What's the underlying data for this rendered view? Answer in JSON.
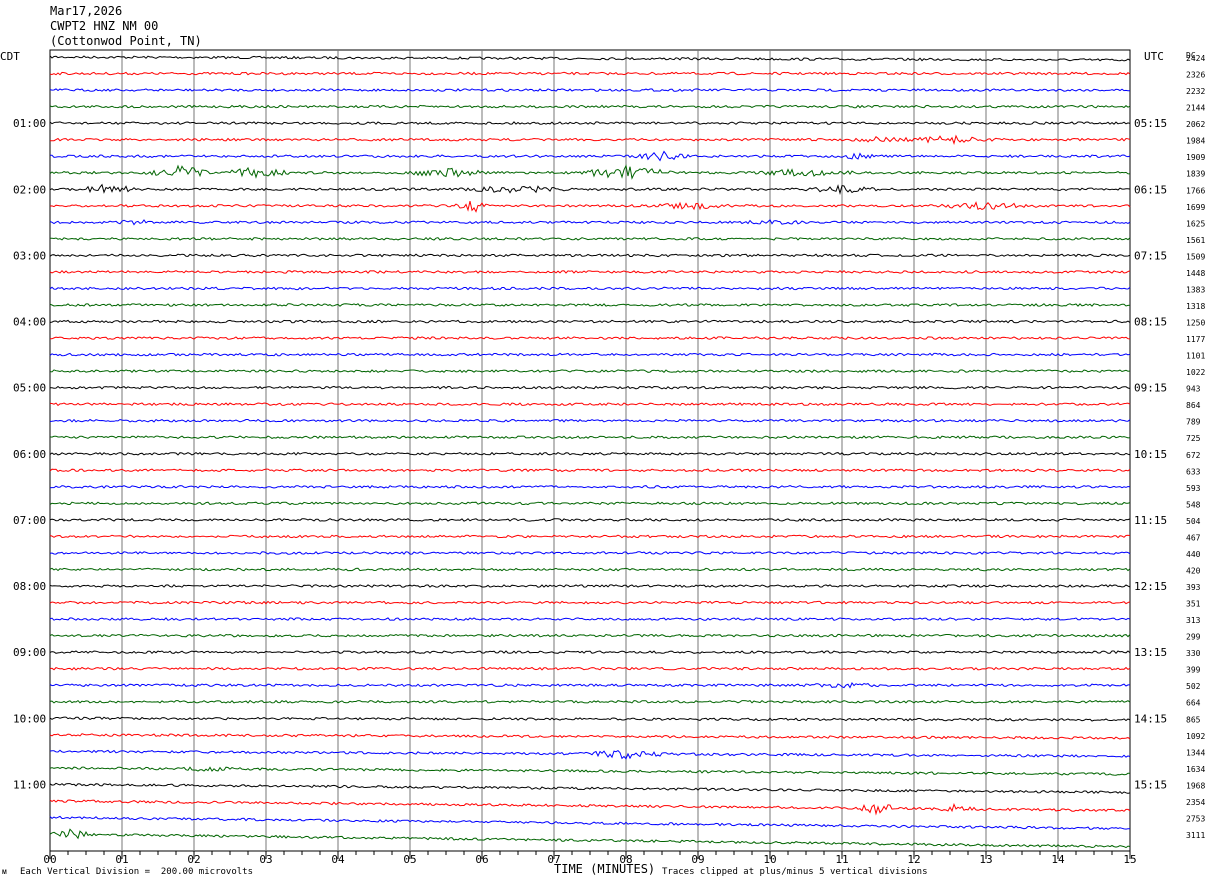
{
  "header": {
    "date": "Mar17,2026",
    "station": "CWPT2 HNZ NM 00",
    "location": "(Cottonwod Point, TN)"
  },
  "left_label": "CDT",
  "right_label": "UTC",
  "dc_label": "DC",
  "footer": {
    "scale_note": "Each Vertical Division =  200.00 microvolts",
    "clip_note": "Traces clipped at plus/minus 5 vertical divisions",
    "x_title": "TIME (MINUTES)"
  },
  "chart_data": {
    "type": "line",
    "title": "",
    "xlabel": "TIME (MINUTES)",
    "ylabel": "",
    "xlim": [
      0,
      15
    ],
    "x_ticks": [
      "00",
      "01",
      "02",
      "03",
      "04",
      "05",
      "06",
      "07",
      "08",
      "09",
      "10",
      "11",
      "12",
      "13",
      "14",
      "15"
    ],
    "trace_colors": [
      "#000000",
      "#ff0000",
      "#0000ff",
      "#006400"
    ],
    "cdt_hour_labels": [
      "01:00",
      "02:00",
      "03:00",
      "04:00",
      "05:00",
      "06:00",
      "07:00",
      "08:00",
      "09:00",
      "10:00",
      "11:00"
    ],
    "utc_hour_labels": [
      "05:15",
      "06:15",
      "07:15",
      "08:15",
      "09:15",
      "10:15",
      "11:15",
      "12:15",
      "13:15",
      "14:15",
      "15:15"
    ],
    "dc_offsets": [
      2424,
      2326,
      2232,
      2144,
      2062,
      1984,
      1909,
      1839,
      1766,
      1699,
      1625,
      1561,
      1509,
      1448,
      1383,
      1318,
      1250,
      1177,
      1101,
      1022,
      943,
      864,
      789,
      725,
      672,
      633,
      593,
      548,
      504,
      467,
      440,
      420,
      393,
      351,
      313,
      299,
      330,
      399,
      502,
      664,
      865,
      1092,
      1344,
      1634,
      1968,
      2354,
      2753,
      3111
    ],
    "grid": true
  }
}
